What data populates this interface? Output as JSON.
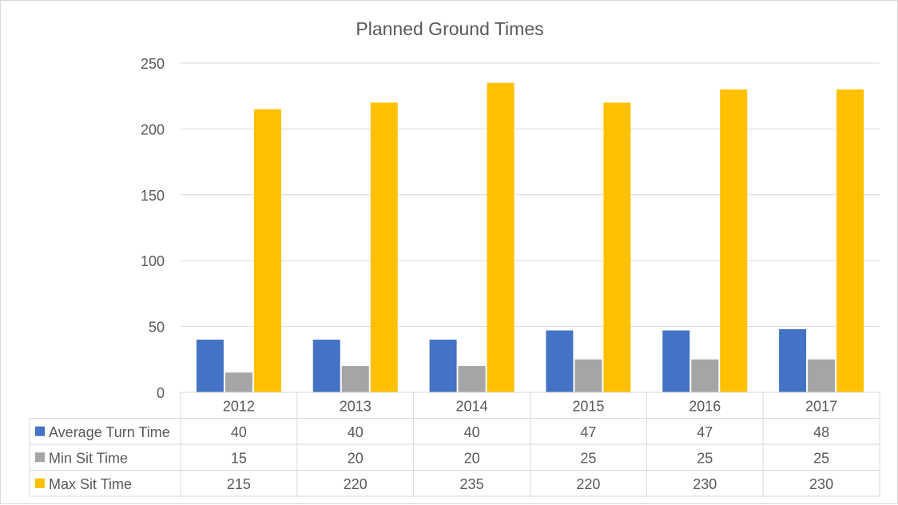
{
  "chart_data": {
    "type": "bar",
    "title": "Planned Ground Times",
    "xlabel": "",
    "ylabel": "",
    "ylim": [
      0,
      250
    ],
    "yticks": [
      0,
      50,
      100,
      150,
      200,
      250
    ],
    "grid": true,
    "legend": "data-table-bottom",
    "categories": [
      "2012",
      "2013",
      "2014",
      "2015",
      "2016",
      "2017"
    ],
    "series": [
      {
        "name": "Average Turn Time",
        "color": "#4472c4",
        "values": [
          40,
          40,
          40,
          47,
          47,
          48
        ]
      },
      {
        "name": "Min Sit Time",
        "color": "#a5a5a5",
        "values": [
          15,
          20,
          20,
          25,
          25,
          25
        ]
      },
      {
        "name": "Max Sit Time",
        "color": "#ffc000",
        "values": [
          215,
          220,
          235,
          220,
          230,
          230
        ]
      }
    ]
  }
}
